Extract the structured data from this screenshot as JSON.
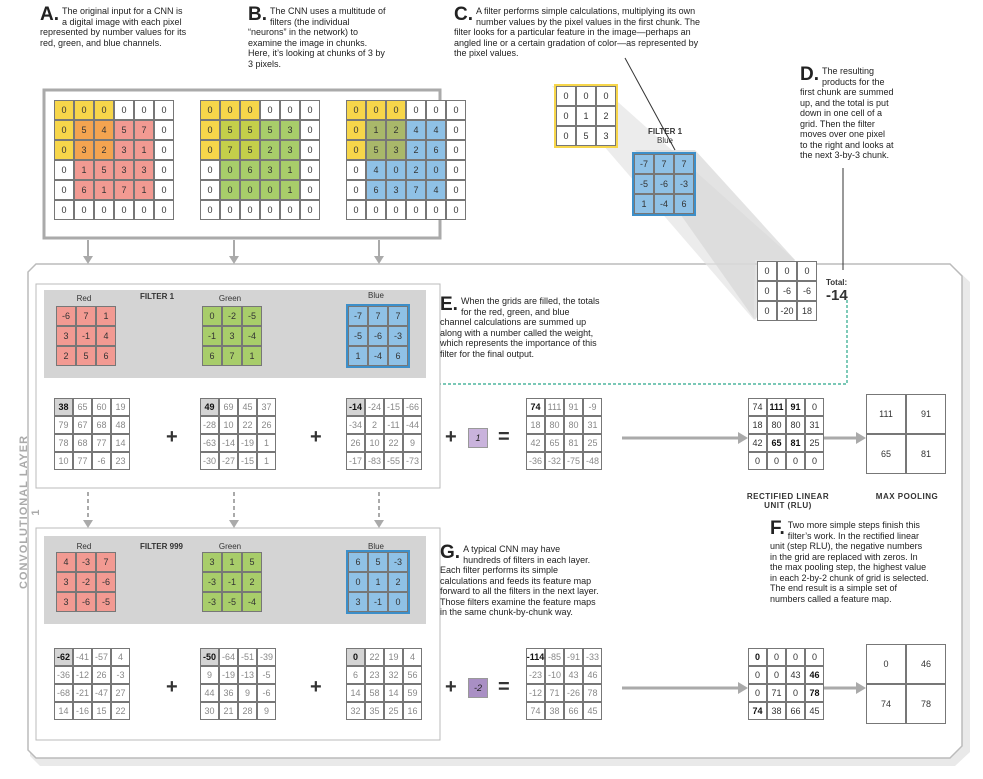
{
  "captions": {
    "A": {
      "letter": "A.",
      "text": "The original input for a CNN is a digital image with each pixel represented by number values for its red, green, and blue channels."
    },
    "B": {
      "letter": "B.",
      "text": "The CNN uses a multitude of filters (the individual “neurons” in the network) to examine the image in chunks. Here, it’s looking at chunks of 3 by 3 pixels."
    },
    "C": {
      "letter": "C.",
      "text": "A filter performs simple calculations, multiplying its own number values by the pixel values in the first chunk. The filter looks for a particular feature in the image—perhaps an angled line or a certain gradation of color—as represented by the pixel values."
    },
    "D": {
      "letter": "D.",
      "text": "The resulting products for the first chunk are summed up, and the total is put down in one cell of a grid. Then the filter moves over one pixel to the right and looks at the next 3-by-3 chunk."
    },
    "E": {
      "letter": "E.",
      "text": "When the grids are filled, the totals for the red, green, and blue channel calculations are summed up along with a number called the weight, which represents the importance of this filter for the final output."
    },
    "F": {
      "letter": "F.",
      "text": "Two more simple steps finish this filter’s work. In the rectified linear unit (step RLU), the negative numbers in the grid are replaced with zeros. In the max pooling step, the highest value in each 2-by-2 chunk of grid is selected. The end result is a simple set of numbers called a feature map."
    },
    "G": {
      "letter": "G.",
      "text": "A typical CNN may have hundreds of filters in each layer. Each filter performs its simple calculations and feeds its feature map forward to all the filters in the next layer. Those filters examine the feature maps in the same chunk-by-chunk way."
    }
  },
  "side_label": "CONVOLUTIONAL LAYER 1",
  "input": {
    "red": [
      [
        0,
        0,
        0,
        0,
        0,
        0
      ],
      [
        0,
        5,
        4,
        5,
        7,
        0
      ],
      [
        0,
        3,
        2,
        3,
        1,
        0
      ],
      [
        0,
        1,
        5,
        3,
        3,
        0
      ],
      [
        0,
        6,
        1,
        7,
        1,
        0
      ],
      [
        0,
        0,
        0,
        0,
        0,
        0
      ]
    ],
    "green": [
      [
        0,
        0,
        0,
        0,
        0,
        0
      ],
      [
        0,
        5,
        5,
        5,
        3,
        0
      ],
      [
        0,
        7,
        5,
        2,
        3,
        0
      ],
      [
        0,
        0,
        6,
        3,
        1,
        0
      ],
      [
        0,
        0,
        0,
        0,
        1,
        0
      ],
      [
        0,
        0,
        0,
        0,
        0,
        0
      ]
    ],
    "blue": [
      [
        0,
        0,
        0,
        0,
        0,
        0
      ],
      [
        0,
        1,
        2,
        4,
        4,
        0
      ],
      [
        0,
        5,
        3,
        2,
        6,
        0
      ],
      [
        0,
        4,
        0,
        2,
        0,
        0
      ],
      [
        0,
        6,
        3,
        7,
        4,
        0
      ],
      [
        0,
        0,
        0,
        0,
        0,
        0
      ]
    ]
  },
  "chunk": [
    [
      0,
      0,
      0
    ],
    [
      0,
      1,
      2
    ],
    [
      0,
      5,
      3
    ]
  ],
  "filter1_label": "FILTER 1",
  "filter1_sub": "Blue",
  "filter1_blue": [
    [
      -7,
      7,
      7
    ],
    [
      -5,
      -6,
      -3
    ],
    [
      1,
      -4,
      6
    ]
  ],
  "products": [
    [
      0,
      0,
      0
    ],
    [
      0,
      -6,
      -6
    ],
    [
      0,
      -20,
      18
    ]
  ],
  "total_label": "Total:",
  "total_value": "-14",
  "f1": {
    "title": "FILTER 1",
    "red_label": "Red",
    "green_label": "Green",
    "blue_label": "Blue",
    "red": [
      [
        -6,
        7,
        1
      ],
      [
        3,
        -1,
        4
      ],
      [
        2,
        5,
        6
      ]
    ],
    "green": [
      [
        0,
        -2,
        -5
      ],
      [
        -1,
        3,
        -4
      ],
      [
        6,
        7,
        1
      ]
    ],
    "blue": [
      [
        -7,
        7,
        7
      ],
      [
        -5,
        -6,
        -3
      ],
      [
        1,
        -4,
        6
      ]
    ],
    "r_out": [
      [
        38,
        65,
        60,
        19
      ],
      [
        79,
        67,
        68,
        48
      ],
      [
        78,
        68,
        77,
        14
      ],
      [
        10,
        77,
        -6,
        23
      ]
    ],
    "g_out": [
      [
        49,
        69,
        45,
        37
      ],
      [
        -28,
        10,
        22,
        26
      ],
      [
        -63,
        -14,
        -19,
        1
      ],
      [
        -30,
        -27,
        -15,
        1
      ]
    ],
    "b_out": [
      [
        -14,
        -24,
        -15,
        -66
      ],
      [
        -34,
        2,
        -11,
        -44
      ],
      [
        26,
        10,
        22,
        9
      ],
      [
        -17,
        -83,
        -55,
        -73
      ]
    ],
    "weight": "1",
    "sum": [
      [
        74,
        111,
        91,
        -9
      ],
      [
        18,
        80,
        80,
        31
      ],
      [
        42,
        65,
        81,
        25
      ],
      [
        -36,
        -32,
        -75,
        -48
      ]
    ],
    "rlu": [
      [
        74,
        111,
        91,
        0
      ],
      [
        18,
        80,
        80,
        31
      ],
      [
        42,
        65,
        81,
        25
      ],
      [
        0,
        0,
        0,
        0
      ]
    ],
    "pool": [
      [
        111,
        91
      ],
      [
        65,
        81
      ]
    ]
  },
  "f999": {
    "title": "FILTER 999",
    "red_label": "Red",
    "green_label": "Green",
    "blue_label": "Blue",
    "red": [
      [
        4,
        -3,
        7
      ],
      [
        3,
        -2,
        -6
      ],
      [
        3,
        -6,
        -5
      ]
    ],
    "green": [
      [
        3,
        1,
        5
      ],
      [
        -3,
        -1,
        2
      ],
      [
        -3,
        -5,
        -4
      ]
    ],
    "blue": [
      [
        6,
        5,
        -3
      ],
      [
        0,
        1,
        2
      ],
      [
        3,
        -1,
        0
      ]
    ],
    "r_out": [
      [
        -62,
        -41,
        -57,
        4
      ],
      [
        -36,
        -12,
        26,
        -3
      ],
      [
        -68,
        -21,
        -47,
        27
      ],
      [
        14,
        -16,
        15,
        22
      ]
    ],
    "g_out": [
      [
        -50,
        -64,
        -51,
        -39
      ],
      [
        9,
        -19,
        -13,
        -5
      ],
      [
        44,
        36,
        9,
        -6
      ],
      [
        30,
        21,
        28,
        9
      ]
    ],
    "b_out": [
      [
        0,
        22,
        19,
        4
      ],
      [
        6,
        23,
        32,
        56
      ],
      [
        14,
        58,
        14,
        59
      ],
      [
        32,
        35,
        25,
        16
      ]
    ],
    "weight": "-2",
    "sum": [
      [
        -114,
        -85,
        -91,
        -33
      ],
      [
        -23,
        -10,
        43,
        46
      ],
      [
        -12,
        71,
        -26,
        78
      ],
      [
        74,
        38,
        66,
        45
      ]
    ],
    "rlu": [
      [
        0,
        0,
        0,
        0
      ],
      [
        0,
        0,
        43,
        46
      ],
      [
        0,
        71,
        0,
        78
      ],
      [
        74,
        38,
        66,
        45
      ]
    ],
    "pool": [
      [
        0,
        46
      ],
      [
        74,
        78
      ]
    ]
  },
  "rlu_label": "RECTIFIED LINEAR UNIT (RLU)",
  "pool_label": "MAX POOLING",
  "colors": {
    "red": "#f29a92",
    "green": "#a8cd6a",
    "blue": "#8fc1e6",
    "yellow": "#f7d64a",
    "orange": "#f4a450",
    "gray": "#d4d4d4",
    "weight": "#c9b3dc"
  }
}
